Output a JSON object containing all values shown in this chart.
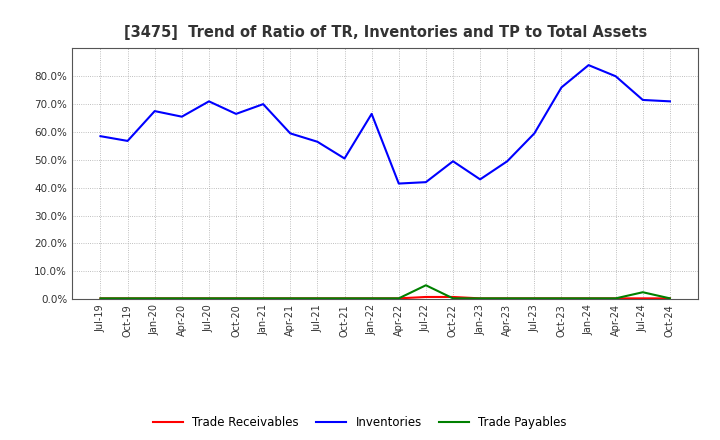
{
  "title": "[3475]  Trend of Ratio of TR, Inventories and TP to Total Assets",
  "x_labels": [
    "Jul-19",
    "Oct-19",
    "Jan-20",
    "Apr-20",
    "Jul-20",
    "Oct-20",
    "Jan-21",
    "Apr-21",
    "Jul-21",
    "Oct-21",
    "Jan-22",
    "Apr-22",
    "Jul-22",
    "Oct-22",
    "Jan-23",
    "Apr-23",
    "Jul-23",
    "Oct-23",
    "Jan-24",
    "Apr-24",
    "Jul-24",
    "Oct-24"
  ],
  "inventories": [
    0.585,
    0.568,
    0.675,
    0.655,
    0.71,
    0.665,
    0.7,
    0.595,
    0.565,
    0.505,
    0.665,
    0.415,
    0.42,
    0.495,
    0.43,
    0.495,
    0.595,
    0.76,
    0.84,
    0.8,
    0.715,
    0.71
  ],
  "trade_receivables": [
    0.003,
    0.003,
    0.003,
    0.003,
    0.003,
    0.003,
    0.003,
    0.003,
    0.003,
    0.003,
    0.003,
    0.003,
    0.008,
    0.008,
    0.003,
    0.003,
    0.003,
    0.003,
    0.003,
    0.003,
    0.003,
    0.003
  ],
  "trade_payables": [
    0.003,
    0.003,
    0.003,
    0.003,
    0.003,
    0.003,
    0.003,
    0.003,
    0.003,
    0.003,
    0.003,
    0.003,
    0.05,
    0.003,
    0.003,
    0.003,
    0.003,
    0.003,
    0.003,
    0.003,
    0.025,
    0.003
  ],
  "inventories_color": "#0000FF",
  "trade_receivables_color": "#FF0000",
  "trade_payables_color": "#008000",
  "ylim": [
    0.0,
    0.9
  ],
  "yticks": [
    0.0,
    0.1,
    0.2,
    0.3,
    0.4,
    0.5,
    0.6,
    0.7,
    0.8
  ],
  "background_color": "#FFFFFF",
  "plot_bg_color": "#FFFFFF",
  "grid_color": "#AAAAAA",
  "title_color": "#333333",
  "legend_labels": [
    "Trade Receivables",
    "Inventories",
    "Trade Payables"
  ]
}
